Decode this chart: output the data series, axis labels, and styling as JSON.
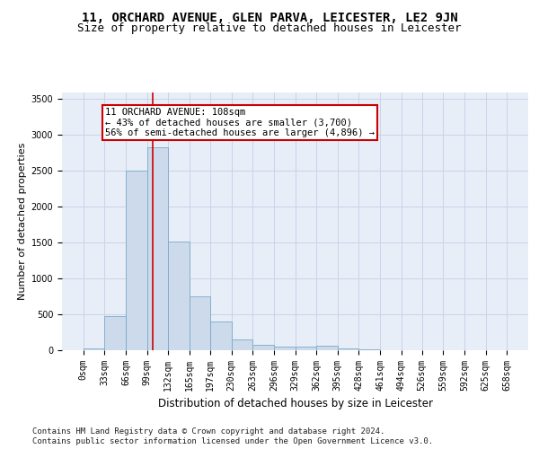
{
  "title1": "11, ORCHARD AVENUE, GLEN PARVA, LEICESTER, LE2 9JN",
  "title2": "Size of property relative to detached houses in Leicester",
  "xlabel": "Distribution of detached houses by size in Leicester",
  "ylabel": "Number of detached properties",
  "bar_color": "#ccdaec",
  "bar_edge_color": "#7aaac8",
  "grid_color": "#c8d4e8",
  "bg_color": "#e8eef8",
  "vline_x": 108,
  "vline_color": "#cc0000",
  "annotation_text": "11 ORCHARD AVENUE: 108sqm\n← 43% of detached houses are smaller (3,700)\n56% of semi-detached houses are larger (4,896) →",
  "annotation_box_color": "#ffffff",
  "annotation_box_edge": "#cc0000",
  "footer1": "Contains HM Land Registry data © Crown copyright and database right 2024.",
  "footer2": "Contains public sector information licensed under the Open Government Licence v3.0.",
  "bin_edges": [
    0,
    33,
    66,
    99,
    132,
    165,
    197,
    230,
    263,
    296,
    329,
    362,
    395,
    428,
    461,
    494,
    526,
    559,
    592,
    625,
    658
  ],
  "bar_heights": [
    25,
    475,
    2500,
    2825,
    1520,
    750,
    400,
    150,
    80,
    55,
    55,
    60,
    25,
    15,
    5,
    3,
    2,
    2,
    1,
    1
  ],
  "ylim": [
    0,
    3600
  ],
  "yticks": [
    0,
    500,
    1000,
    1500,
    2000,
    2500,
    3000,
    3500
  ],
  "title1_fontsize": 10,
  "title2_fontsize": 9,
  "xlabel_fontsize": 8.5,
  "ylabel_fontsize": 8,
  "tick_fontsize": 7,
  "annotation_fontsize": 7.5,
  "footer_fontsize": 6.5
}
